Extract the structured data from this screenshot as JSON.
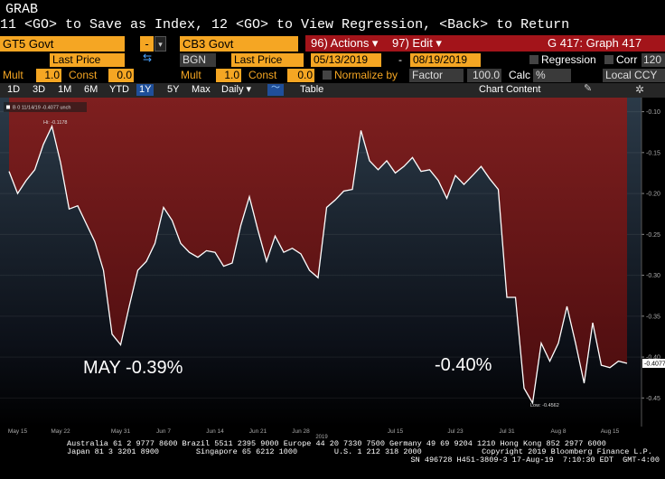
{
  "header": {
    "title": "GRAB",
    "command": "11 <GO> to Save as Index, 12 <GO> to View Regression, <Back> to Return"
  },
  "toolbar": {
    "security1": "GT5 Govt",
    "operator": "-",
    "security2": "CB3 Govt",
    "actions": "96) Actions ▾",
    "edit": "97) Edit ▾",
    "page": "G 417: Graph 417",
    "field1": "Last Price",
    "source": "BGN",
    "field2": "Last Price",
    "start_date": "05/13/2019",
    "date_sep": "-",
    "end_date": "08/19/2019",
    "regression": "Regression",
    "corr": "Corr",
    "corr_value": "120",
    "mult1": "Mult",
    "mult1_value": "1.0",
    "const1": "Const",
    "const1_value": "0.0",
    "mult2": "Mult",
    "mult2_value": "1.0",
    "const2": "Const",
    "const2_value": "0.0",
    "normalize": "Normalize by",
    "factor": "Factor",
    "factor_value": "100.0",
    "calc": "Calc",
    "calc_value": "%",
    "currency": "Local CCY"
  },
  "nav": {
    "ranges": [
      "1D",
      "3D",
      "1M",
      "6M",
      "YTD",
      "1Y",
      "5Y",
      "Max"
    ],
    "frequency": "Daily ▾",
    "table": "Table",
    "chart_content": "Chart Content"
  },
  "chart_data": {
    "type": "line",
    "legend": "B 0 11/14/19 -0.4077 unch",
    "color": "#ffffff",
    "categories": [
      null,
      "May 15",
      null,
      null,
      null,
      null,
      "May 22",
      null,
      null,
      null,
      null,
      null,
      null,
      "May 31",
      null,
      null,
      null,
      null,
      "Jun 7",
      null,
      null,
      null,
      null,
      null,
      "Jun 14",
      null,
      null,
      null,
      null,
      "Jun 21",
      null,
      null,
      null,
      null,
      "Jun 28",
      null,
      null,
      null,
      null,
      null,
      null,
      null,
      null,
      null,
      null,
      "Jul 15",
      null,
      null,
      null,
      null,
      null,
      null,
      "Jul 23",
      null,
      null,
      null,
      null,
      null,
      "Jul 31",
      null,
      null,
      null,
      null,
      null,
      "Aug 8",
      null,
      null,
      null,
      null,
      null,
      "Aug 15",
      null,
      null
    ],
    "values": [
      -0.173,
      -0.2,
      -0.184,
      -0.171,
      -0.14,
      -0.1178,
      -0.162,
      -0.219,
      -0.215,
      -0.237,
      -0.259,
      -0.294,
      -0.372,
      -0.385,
      -0.338,
      -0.294,
      -0.283,
      -0.261,
      -0.217,
      -0.233,
      -0.261,
      -0.272,
      -0.278,
      -0.27,
      -0.272,
      -0.289,
      -0.285,
      -0.239,
      -0.204,
      -0.245,
      -0.283,
      -0.252,
      -0.272,
      -0.267,
      -0.274,
      -0.294,
      -0.303,
      -0.217,
      -0.208,
      -0.197,
      -0.195,
      -0.123,
      -0.16,
      -0.171,
      -0.16,
      -0.175,
      -0.167,
      -0.156,
      -0.173,
      -0.171,
      -0.184,
      -0.206,
      -0.178,
      -0.189,
      -0.178,
      -0.167,
      -0.182,
      -0.195,
      -0.327,
      -0.327,
      -0.438,
      -0.4562,
      -0.383,
      -0.405,
      -0.383,
      -0.338,
      -0.383,
      -0.432,
      -0.358,
      -0.41,
      -0.413,
      -0.405,
      -0.4077
    ],
    "ylim": [
      -0.085,
      -0.485
    ],
    "yticks": [
      {
        "value": -0.1,
        "label": "-0.10"
      },
      -0.15,
      {
        "value": -0.2,
        "label": "-0.20"
      },
      -0.25,
      {
        "value": -0.3,
        "label": "-0.30"
      },
      -0.35,
      {
        "value": -0.4,
        "label": "-0.40"
      },
      -0.45
    ],
    "last_label": "-0.4077",
    "x_year": "2019",
    "annotations": {
      "high": "Hi: -0.1178",
      "low": "Low: -0.4562",
      "may": "MAY -0.39%",
      "aug": "-0.40%"
    },
    "grid": true
  },
  "footer": {
    "line1": "Australia 61 2 9777 8600 Brazil 5511 2395 9000 Europe 44 20 7330 7500 Germany 49 69 9204 1210 Hong Kong 852 2977 6000",
    "line2": "Japan 81 3 3201 8900        Singapore 65 6212 1000        U.S. 1 212 318 2000             Copyright 2019 Bloomberg Finance L.P.",
    "line3": "SN 496728 H451-3809-3 17-Aug-19  7:10:30 EDT  GMT-4:00"
  }
}
